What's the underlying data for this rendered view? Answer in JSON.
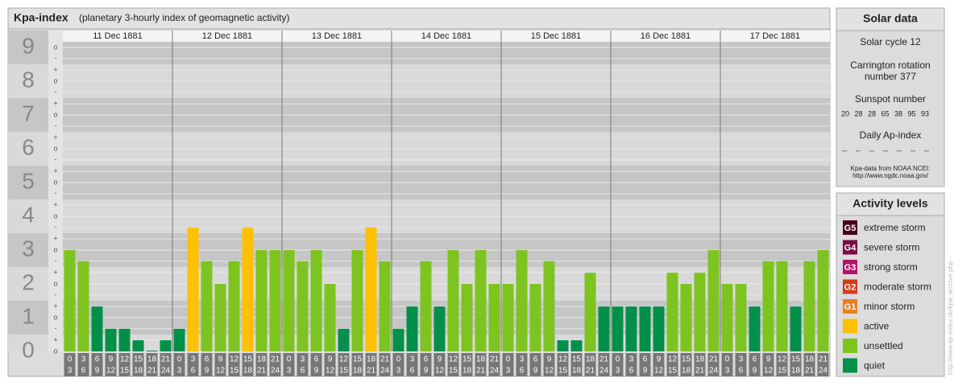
{
  "chart_data": {
    "type": "bar",
    "title": "Kpa-index",
    "subtitle": "(planetary 3-hourly index of geomagnetic activity)",
    "ylim": [
      0,
      9.5
    ],
    "yticks": [
      0,
      1,
      2,
      3,
      4,
      5,
      6,
      7,
      8,
      9
    ],
    "minor_ticks": [
      {
        "value": 0,
        "label": "o"
      },
      {
        "value": 0.33,
        "label": "+"
      },
      {
        "value": 0.67,
        "label": "-"
      },
      {
        "value": 1,
        "label": "o"
      },
      {
        "value": 1.33,
        "label": "+"
      },
      {
        "value": 1.67,
        "label": "-"
      },
      {
        "value": 2,
        "label": "o"
      },
      {
        "value": 2.33,
        "label": "+"
      },
      {
        "value": 2.67,
        "label": "-"
      },
      {
        "value": 3,
        "label": "o"
      },
      {
        "value": 3.33,
        "label": "+"
      },
      {
        "value": 3.67,
        "label": "-"
      },
      {
        "value": 4,
        "label": "o"
      },
      {
        "value": 4.33,
        "label": "+"
      },
      {
        "value": 4.67,
        "label": "-"
      },
      {
        "value": 5,
        "label": "o"
      },
      {
        "value": 5.33,
        "label": "+"
      },
      {
        "value": 5.67,
        "label": "-"
      },
      {
        "value": 6,
        "label": "o"
      },
      {
        "value": 6.33,
        "label": "+"
      },
      {
        "value": 6.67,
        "label": "-"
      },
      {
        "value": 7,
        "label": "o"
      },
      {
        "value": 7.33,
        "label": "+"
      },
      {
        "value": 7.67,
        "label": "-"
      },
      {
        "value": 8,
        "label": "o"
      },
      {
        "value": 8.33,
        "label": "+"
      },
      {
        "value": 8.67,
        "label": "-"
      },
      {
        "value": 9,
        "label": "o"
      }
    ],
    "hour_ranges": [
      [
        0,
        3
      ],
      [
        3,
        6
      ],
      [
        6,
        9
      ],
      [
        9,
        12
      ],
      [
        12,
        15
      ],
      [
        15,
        18
      ],
      [
        18,
        21
      ],
      [
        21,
        24
      ]
    ],
    "days": [
      {
        "date": "11 Dec 1881",
        "values": [
          3,
          2.67,
          1.33,
          0.67,
          0.67,
          0.33,
          0,
          0.33
        ]
      },
      {
        "date": "12 Dec 1881",
        "values": [
          0.67,
          3.67,
          2.67,
          2,
          2.67,
          3.67,
          3,
          3
        ]
      },
      {
        "date": "13 Dec 1881",
        "values": [
          3,
          2.67,
          3,
          2,
          0.67,
          3,
          3.67,
          2.67
        ]
      },
      {
        "date": "14 Dec 1881",
        "values": [
          0.67,
          1.33,
          2.67,
          1.33,
          3,
          2,
          3,
          2
        ]
      },
      {
        "date": "15 Dec 1881",
        "values": [
          2,
          3,
          2,
          2.67,
          0.33,
          0.33,
          2.33,
          1.33
        ]
      },
      {
        "date": "16 Dec 1881",
        "values": [
          1.33,
          1.33,
          1.33,
          1.33,
          2.33,
          2,
          2.33,
          3
        ]
      },
      {
        "date": "17 Dec 1881",
        "values": [
          2,
          2,
          1.33,
          2.67,
          2.67,
          1.33,
          2.67,
          3
        ]
      }
    ],
    "legend_title": "Activity levels",
    "levels": [
      {
        "badge": "G5",
        "label": "extreme storm",
        "color": "#4a0021",
        "from": 9
      },
      {
        "badge": "G4",
        "label": "severe storm",
        "color": "#7a0b45",
        "from": 8
      },
      {
        "badge": "G3",
        "label": "strong storm",
        "color": "#b3136b",
        "from": 7
      },
      {
        "badge": "G2",
        "label": "moderate storm",
        "color": "#d43a1b",
        "from": 6
      },
      {
        "badge": "G1",
        "label": "minor storm",
        "color": "#e8801f",
        "from": 5
      },
      {
        "label": "active",
        "color": "#ffc000",
        "from": 3.67
      },
      {
        "label": "unsettled",
        "color": "#7dc421",
        "from": 2
      },
      {
        "label": "quiet",
        "color": "#00904a",
        "from": 0
      }
    ]
  },
  "solar_data": {
    "title": "Solar data",
    "cycle": "Solar cycle 12",
    "carrington": [
      "Carrington rotation",
      "number 377"
    ],
    "sunspot_title": "Sunspot number",
    "sunspots": [
      20,
      28,
      28,
      65,
      38,
      95,
      93
    ],
    "ap_title": "Daily Ap-index",
    "ap": [
      "--",
      "--",
      "--",
      "--",
      "--",
      "--",
      "--"
    ],
    "source": [
      "Kpa-data from NOAA NCEI:",
      "http://www.ngdc.noaa.gov/"
    ]
  },
  "side_url": "http://www.kp-index.de/kpa_archive.php"
}
